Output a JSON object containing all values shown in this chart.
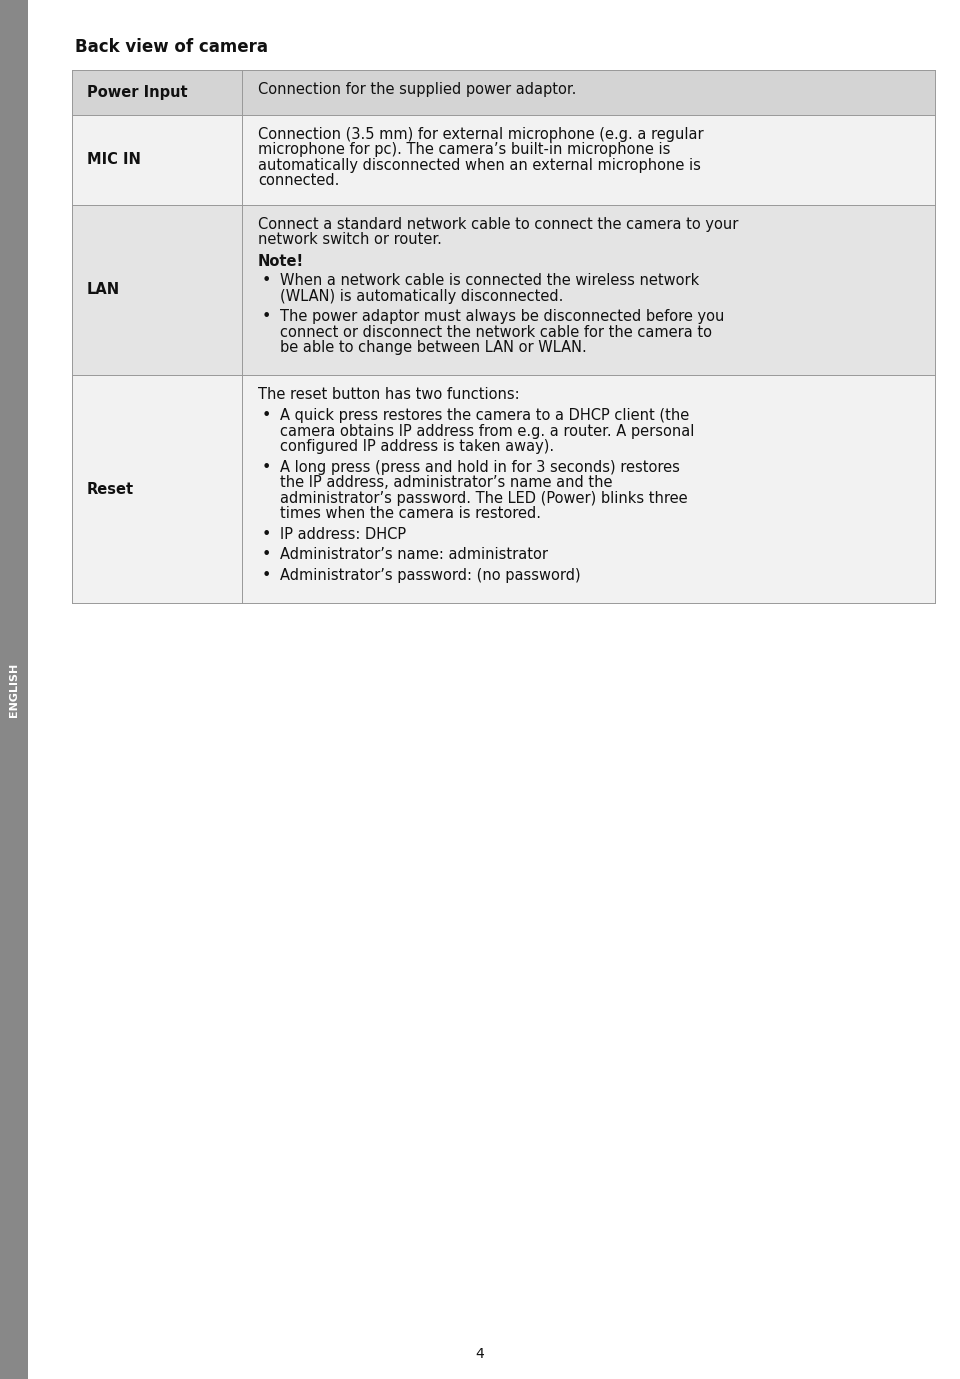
{
  "bg_color": "#ffffff",
  "sidebar_color": "#888888",
  "sidebar_text": "ENGLISH",
  "title": "Back view of camera",
  "title_fontsize": 12,
  "border_color": "#999999",
  "font_size": 10.5,
  "rows": [
    {
      "label": "Power Input",
      "bg": "#d4d4d4",
      "content": [
        {
          "type": "text",
          "text": "Connection for the supplied power adaptor."
        }
      ]
    },
    {
      "label": "MIC IN",
      "bg": "#f2f2f2",
      "content": [
        {
          "type": "text",
          "text": "Connection (3.5 mm) for external microphone (e.g. a regular microphone for pc). The camera’s built-in microphone is automatically disconnected when an external microphone is connected."
        }
      ]
    },
    {
      "label": "LAN",
      "bg": "#e4e4e4",
      "content": [
        {
          "type": "text",
          "text": "Connect a standard network cable to connect the camera to your network switch or router."
        },
        {
          "type": "bold_text",
          "text": "Note!"
        },
        {
          "type": "bullet",
          "text": "When a network cable is connected the wireless network (WLAN) is automatically disconnected."
        },
        {
          "type": "bullet",
          "text": "The power adaptor must always be disconnected before you connect or disconnect the network cable for the camera to be able to change between LAN or WLAN."
        }
      ]
    },
    {
      "label": "Reset",
      "bg": "#f2f2f2",
      "content": [
        {
          "type": "text",
          "text": "The reset button has two functions:"
        },
        {
          "type": "bullet",
          "text": "A quick press restores the camera to a DHCP client (the camera obtains IP address from e.g. a router. A personal configured IP address is taken away)."
        },
        {
          "type": "bullet",
          "text": "A long press (press and hold in for 3 seconds) restores the IP address, administrator’s name and the administrator’s password.  The LED (Power) blinks three times when the camera is restored."
        },
        {
          "type": "bullet",
          "text": "IP address: DHCP"
        },
        {
          "type": "bullet",
          "text": "Administrator’s name: administrator"
        },
        {
          "type": "bullet",
          "text": "Administrator’s password: (no password)"
        }
      ]
    }
  ],
  "footer_text": "4"
}
